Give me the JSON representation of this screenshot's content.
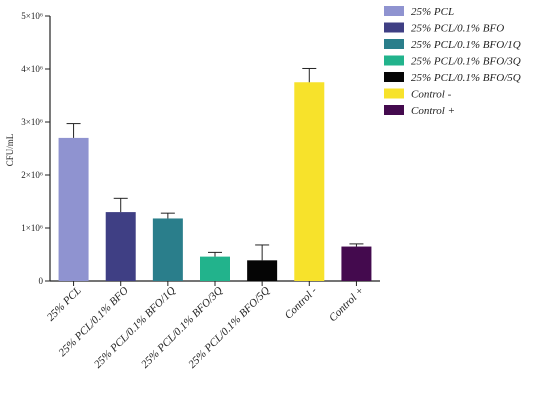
{
  "chart_data": {
    "type": "bar",
    "ylabel": "CFU/mL",
    "xlabel": "",
    "ylim": [
      0,
      5000000
    ],
    "y_ticks": [
      {
        "value": 0,
        "label": "0"
      },
      {
        "value": 1000000,
        "label": "1×10⁶"
      },
      {
        "value": 2000000,
        "label": "2×10⁶"
      },
      {
        "value": 3000000,
        "label": "3×10⁶"
      },
      {
        "value": 4000000,
        "label": "4×10⁶"
      },
      {
        "value": 5000000,
        "label": "5×10⁶"
      }
    ],
    "categories": [
      "25% PCL",
      "25% PCL/0.1% BFO",
      "25% PCL/0.1% BFO/1Q",
      "25% PCL/0.1% BFO/3Q",
      "25% PCL/0.1% BFO/5Q",
      "Control -",
      "Control +"
    ],
    "values": [
      2700000,
      1300000,
      1180000,
      460000,
      390000,
      3750000,
      650000
    ],
    "errors": [
      270000,
      260000,
      100000,
      80000,
      290000,
      260000,
      50000
    ],
    "colors": [
      "#8f93d0",
      "#3f3f84",
      "#2a7e8b",
      "#22b38c",
      "#050505",
      "#f7e22b",
      "#440a4e"
    ],
    "grid": false,
    "legend_position": "top-right",
    "legend": [
      "25% PCL",
      "25% PCL/0.1% BFO",
      "25% PCL/0.1% BFO/1Q",
      "25% PCL/0.1% BFO/3Q",
      "25% PCL/0.1% BFO/5Q",
      "Control -",
      "Control +"
    ]
  }
}
